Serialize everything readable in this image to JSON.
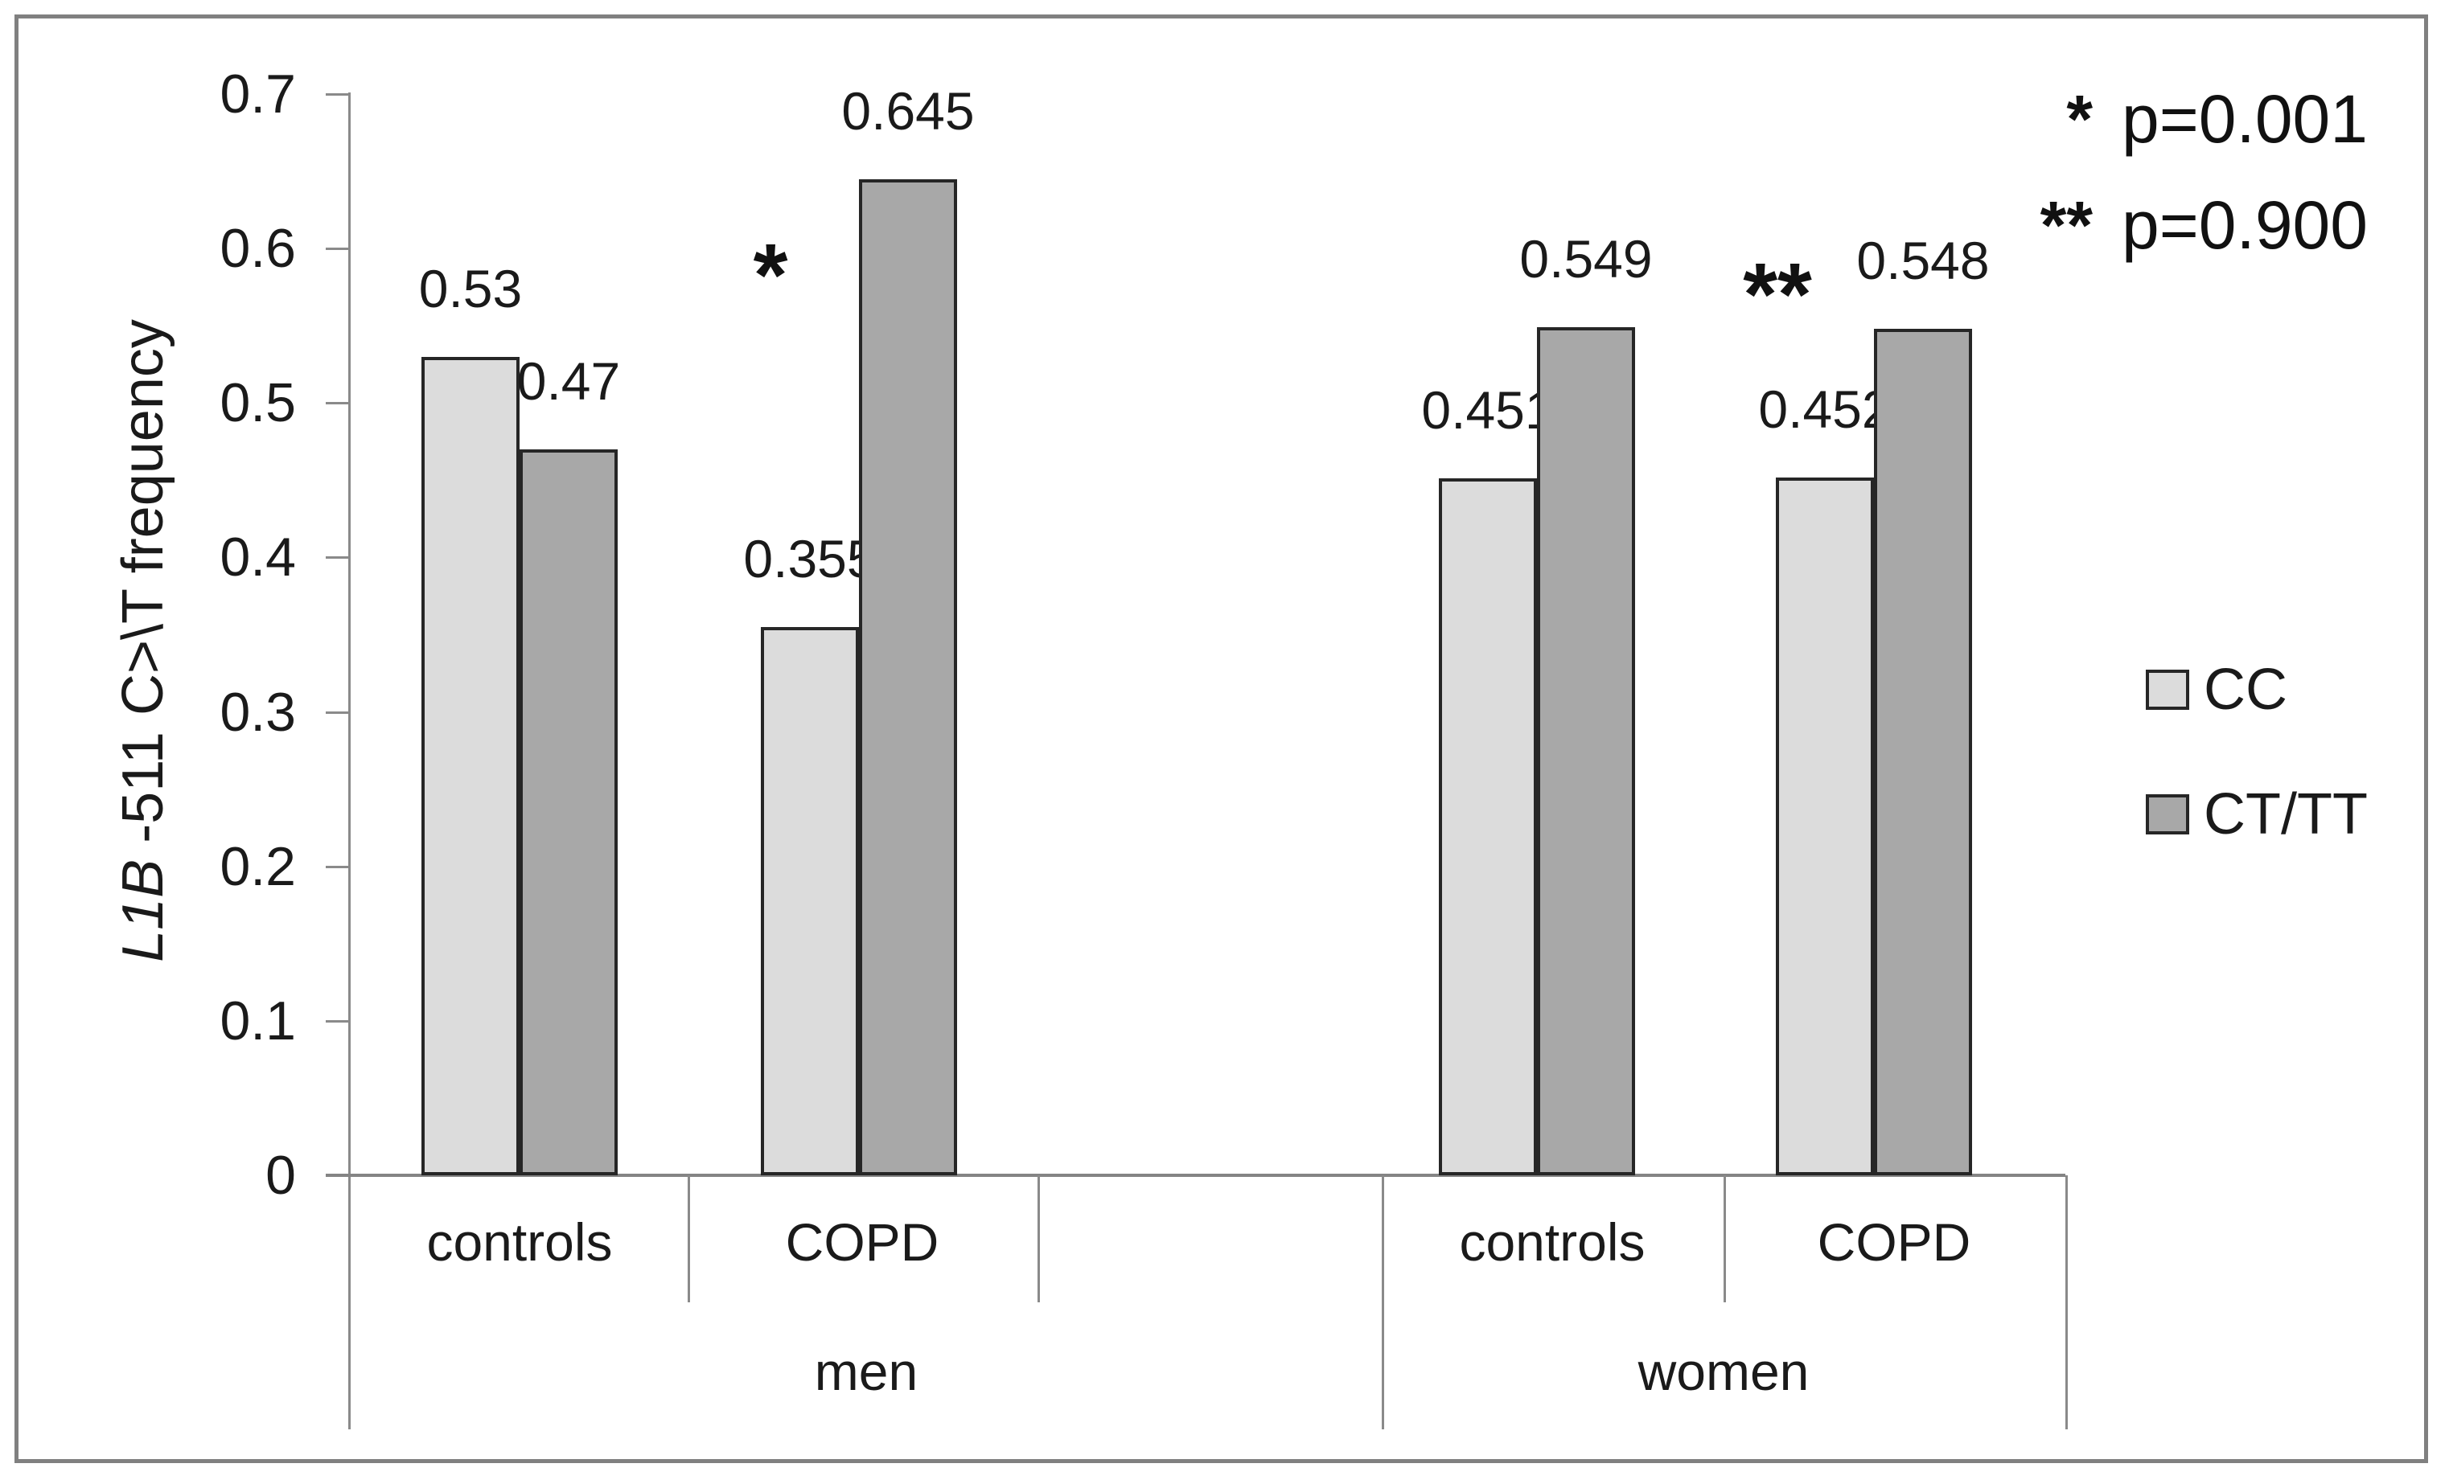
{
  "figure": {
    "background_color": "#ffffff",
    "border_color": "#808080"
  },
  "y_axis": {
    "title_italic_part": "L1B",
    "title_rest_part": " -511 C>\\T frequency",
    "tick_labels": [
      "0.7",
      "0.6",
      "0.5",
      "0.4",
      "0.3",
      "0.2",
      "0.1",
      "0"
    ],
    "tick_values": [
      0.7,
      0.6,
      0.5,
      0.4,
      0.3,
      0.2,
      0.1,
      0
    ]
  },
  "x_axis": {
    "category_labels": [
      "controls",
      "COPD",
      "controls",
      "COPD"
    ],
    "group_labels": [
      "men",
      "women"
    ]
  },
  "legend": {
    "entries": [
      {
        "label": "CC",
        "color": "#dcdcdc"
      },
      {
        "label": "CT/TT",
        "color": "#a8a8a8"
      }
    ]
  },
  "pvalue_annotations": [
    {
      "symbol": "*",
      "text": "p=0.001"
    },
    {
      "symbol": "**",
      "text": "p=0.900"
    }
  ],
  "chart_significance_marks": [
    {
      "symbol": "*",
      "cluster": "men COPD"
    },
    {
      "symbol": "**",
      "cluster": "women COPD"
    }
  ],
  "colors": {
    "cc_fill": "#dcdcdc",
    "cttt_fill": "#a8a8a8",
    "bar_border": "#262626",
    "axis_line": "#8a8a8a"
  },
  "chart_data": {
    "type": "bar",
    "title": "",
    "xlabel": "",
    "ylabel": "L1B -511 C>\\T frequency",
    "ylim": [
      0,
      0.7
    ],
    "grid": false,
    "legend_position": "right",
    "categories": [
      "men controls",
      "men COPD",
      "women controls",
      "women COPD"
    ],
    "category_row": [
      "controls",
      "COPD",
      "controls",
      "COPD"
    ],
    "group_row": [
      "men",
      "women"
    ],
    "series": [
      {
        "name": "CC",
        "values": [
          0.53,
          0.355,
          0.451,
          0.452
        ],
        "value_labels": [
          "0.53",
          "0.355",
          "0.451",
          "0.452"
        ]
      },
      {
        "name": "CT/TT",
        "values": [
          0.47,
          0.645,
          0.549,
          0.548
        ],
        "value_labels": [
          "0.47",
          "0.645",
          "0.549",
          "0.548"
        ]
      }
    ],
    "annotations": [
      {
        "symbol": "*",
        "category": "men COPD",
        "meaning": "p=0.001"
      },
      {
        "symbol": "**",
        "category": "women COPD",
        "meaning": "p=0.900"
      }
    ]
  }
}
